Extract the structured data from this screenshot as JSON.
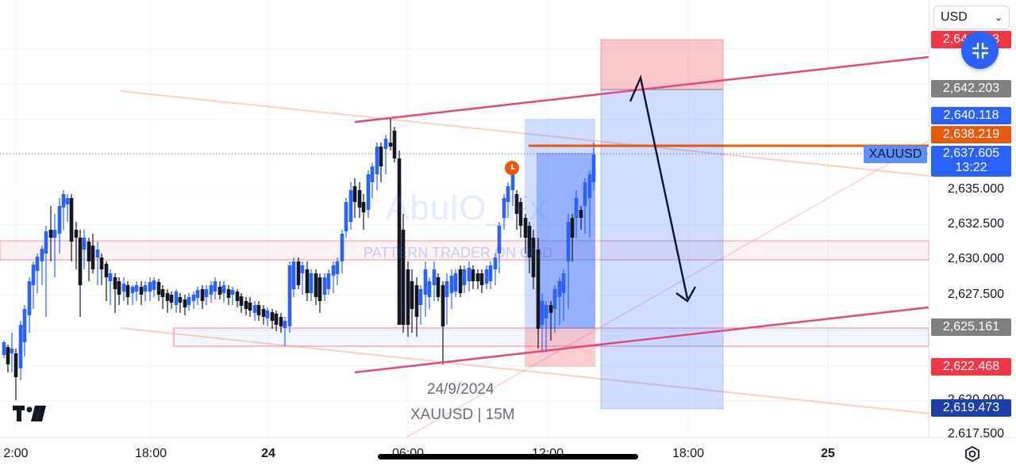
{
  "symbol": "XAUUSD",
  "currency_selector": {
    "value": "USD"
  },
  "current_price": {
    "value": "2,637.605",
    "countdown": "13:22",
    "color": "#2962ff"
  },
  "price_axis": {
    "ticks": [
      "2,635.000",
      "2,632.500",
      "2,630.000",
      "2,627.500",
      "2,622.500",
      "2,620.000",
      "2,617.500"
    ],
    "labels": [
      {
        "text": "2,64_.__3",
        "color": "#f23645"
      },
      {
        "text": "2,642.203",
        "color": "#808080"
      },
      {
        "text": "2,640.118",
        "color": "#2962ff"
      },
      {
        "text": "2,638.219",
        "color": "#e9590c"
      },
      {
        "text": "2,625.161",
        "color": "#808080"
      },
      {
        "text": "2,622.468",
        "color": "#f23645"
      },
      {
        "text": "2,619.473",
        "color": "#1c3faa"
      }
    ]
  },
  "time_axis": {
    "ticks": [
      {
        "text": "2:00",
        "bold": false
      },
      {
        "text": "18:00",
        "bold": false
      },
      {
        "text": "24",
        "bold": true
      },
      {
        "text": "06:00",
        "bold": false
      },
      {
        "text": "12:00",
        "bold": false
      },
      {
        "text": "18:00",
        "bold": false
      },
      {
        "text": "25",
        "bold": true
      }
    ]
  },
  "watermark": {
    "author": "AbulO_Fx",
    "tagline": "PATTERN TRADER ON GOD"
  },
  "chart_info": {
    "date": "24/9/2024",
    "title": "XAUUSD | 15M"
  },
  "colors": {
    "up": "#2962ff",
    "down": "#131722",
    "trendline": "#e8477d",
    "stop_zone": "#f23645",
    "target_zone": "#2962ff",
    "level": "#e9590c"
  },
  "icons": {
    "logo": "tradingview-logo-icon",
    "fab": "collapse-arrows-icon",
    "settings": "settings-gear-icon",
    "dropdown": "chevron-down-icon",
    "alert": "alarm-clock-icon"
  }
}
